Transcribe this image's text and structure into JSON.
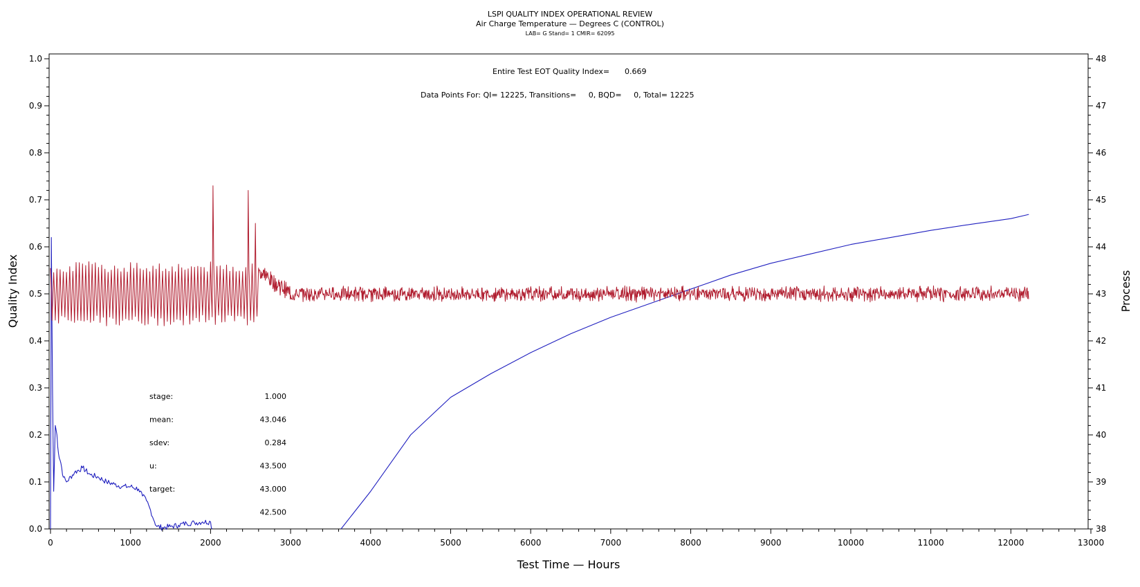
{
  "chart_data": {
    "type": "line",
    "title": "LSPI QUALITY INDEX OPERATIONAL REVIEW",
    "subtitle": "Air Charge Temperature — Degrees C (CONTROL)",
    "subtitle2": "LAB= G Stand= 1 CMIR= 62095",
    "xlabel": "Test Time — Hours",
    "ylabel_left": "Quality Index",
    "ylabel_right": "Process",
    "xlim": [
      0,
      13000
    ],
    "ylim_left": [
      0.0,
      1.0
    ],
    "ylim_right": [
      38,
      48
    ],
    "x_ticks": [
      "0",
      "1000",
      "2000",
      "3000",
      "4000",
      "5000",
      "6000",
      "7000",
      "8000",
      "9000",
      "10000",
      "11000",
      "12000",
      "13000"
    ],
    "y_left_ticks": [
      "0.0",
      "0.1",
      "0.2",
      "0.3",
      "0.4",
      "0.5",
      "0.6",
      "0.7",
      "0.8",
      "0.9",
      "1.0"
    ],
    "y_right_ticks": [
      "38",
      "39",
      "40",
      "41",
      "42",
      "43",
      "44",
      "45",
      "46",
      "47",
      "48"
    ],
    "annotations": {
      "eot_label": "Entire Test EOT Quality Index=",
      "eot_value": "0.669",
      "points_line": "Data Points For: QI= 12225, Transitions=     0, BQD=     0, Total= 12225"
    },
    "stats": [
      {
        "label": "stage:",
        "value": "1.000"
      },
      {
        "label": "mean:",
        "value": "43.046"
      },
      {
        "label": "sdev:",
        "value": "0.284"
      },
      {
        "label": "u:",
        "value": "43.500"
      },
      {
        "label": "target:",
        "value": "43.000"
      },
      {
        "label": "",
        "value": "42.500"
      }
    ],
    "series": [
      {
        "axis": "left",
        "color": "#1f1fbf",
        "points": [
          [
            0,
            0.0
          ],
          [
            10,
            0.62
          ],
          [
            25,
            0.3
          ],
          [
            40,
            0.08
          ],
          [
            60,
            0.22
          ],
          [
            80,
            0.2
          ],
          [
            100,
            0.16
          ],
          [
            130,
            0.14
          ],
          [
            160,
            0.11
          ],
          [
            200,
            0.1
          ],
          [
            300,
            0.12
          ],
          [
            400,
            0.13
          ],
          [
            500,
            0.115
          ],
          [
            600,
            0.11
          ],
          [
            700,
            0.1
          ],
          [
            800,
            0.095
          ],
          [
            900,
            0.09
          ],
          [
            1000,
            0.09
          ],
          [
            1100,
            0.085
          ],
          [
            1150,
            0.07
          ],
          [
            1200,
            0.06
          ],
          [
            1250,
            0.04
          ],
          [
            1300,
            0.015
          ],
          [
            1330,
            0.005
          ],
          [
            1400,
            0.003
          ],
          [
            1500,
            0.005
          ],
          [
            1600,
            0.008
          ],
          [
            1700,
            0.012
          ],
          [
            1800,
            0.013
          ],
          [
            1900,
            0.015
          ],
          [
            2000,
            0.015
          ],
          [
            2020,
            0.0
          ]
        ]
      },
      {
        "axis": "left",
        "color": "#1f1fbf",
        "points": [
          [
            3630,
            0.0
          ],
          [
            4000,
            0.08
          ],
          [
            4500,
            0.2
          ],
          [
            5000,
            0.28
          ],
          [
            5500,
            0.33
          ],
          [
            6000,
            0.375
          ],
          [
            6500,
            0.415
          ],
          [
            7000,
            0.45
          ],
          [
            7500,
            0.48
          ],
          [
            8000,
            0.51
          ],
          [
            8500,
            0.54
          ],
          [
            9000,
            0.565
          ],
          [
            9500,
            0.585
          ],
          [
            10000,
            0.605
          ],
          [
            10500,
            0.62
          ],
          [
            11000,
            0.635
          ],
          [
            11500,
            0.648
          ],
          [
            12000,
            0.66
          ],
          [
            12225,
            0.669
          ]
        ]
      },
      {
        "axis": "right",
        "color": "#b01c2e",
        "name": "",
        "regimes": [
          {
            "x_start": 0,
            "x_end": 2600,
            "center": 43.0,
            "amplitude": 0.6,
            "period": 40
          },
          {
            "x_start": 2600,
            "x_end": 3000,
            "center_start": 43.5,
            "center_end": 43.0,
            "amplitude": 0.15
          },
          {
            "x_start": 3000,
            "x_end": 12225,
            "center": 43.0,
            "amplitude": 0.12
          }
        ],
        "spikes": [
          [
            2030,
            45.3
          ],
          [
            2470,
            45.2
          ],
          [
            2560,
            44.5
          ]
        ]
      }
    ],
    "grid": false
  }
}
